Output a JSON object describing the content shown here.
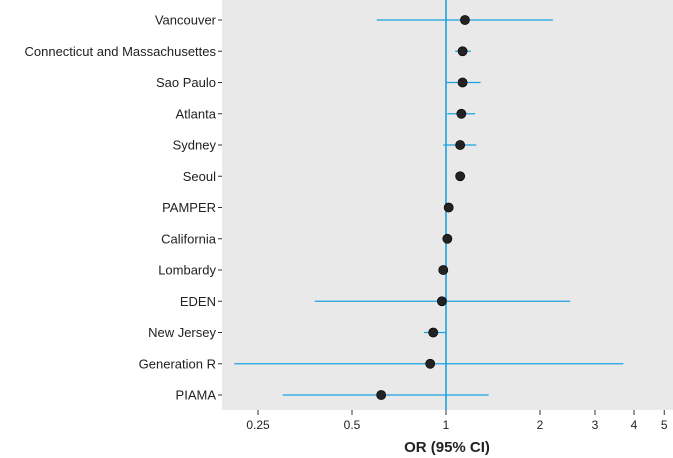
{
  "chart_data": {
    "type": "scatter",
    "subtype": "forest-plot",
    "xscale": "log",
    "xlim": [
      0.2,
      5.4
    ],
    "xlabel": "OR (95% CI)",
    "xticks": [
      0.25,
      0.5,
      1,
      2,
      3,
      4,
      5
    ],
    "xtick_labels": [
      "0.25",
      "0.5",
      "1",
      "2",
      "3",
      "4",
      "5"
    ],
    "reference_line": 1,
    "grid": false,
    "panel_background": "#e9e9e9",
    "colors": {
      "ci": "#1ba1e2",
      "reference": "#1ba1e2",
      "point": "#222222"
    },
    "categories": [
      "Vancouver",
      "Connecticut and Massachusettes",
      "Sao Paulo",
      "Atlanta",
      "Sydney",
      "Seoul",
      "PAMPER",
      "California",
      "Lombardy",
      "EDEN",
      "New Jersey",
      "Generation R",
      "PIAMA"
    ],
    "series": [
      {
        "or": [
          1.15,
          1.13,
          1.13,
          1.12,
          1.11,
          1.11,
          1.02,
          1.01,
          0.98,
          0.97,
          0.91,
          0.89,
          0.62
        ],
        "lower": [
          0.6,
          1.07,
          1.0,
          1.01,
          0.98,
          1.1,
          1.0,
          1.0,
          0.97,
          0.38,
          0.85,
          0.21,
          0.3
        ],
        "upper": [
          2.2,
          1.2,
          1.29,
          1.24,
          1.25,
          1.12,
          1.04,
          1.02,
          0.99,
          2.5,
          1.0,
          3.7,
          1.37
        ]
      }
    ]
  }
}
